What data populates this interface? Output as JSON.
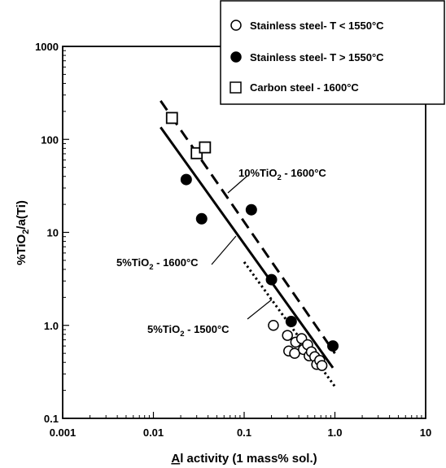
{
  "chart_data": {
    "type": "scatter",
    "xscale": "log",
    "yscale": "log",
    "xlim": [
      0.001,
      10
    ],
    "ylim": [
      0.1,
      1000
    ],
    "xticks": [
      "0.001",
      "0.01",
      "0.1",
      "1.0",
      "10"
    ],
    "yticks": [
      "0.1",
      "1.0",
      "10",
      "100",
      "1000"
    ],
    "xlabel": "Al activity (1 mass% sol.)",
    "xlabel_underlined": "A",
    "xlabel_rest": "l activity (1 mass% sol.)",
    "ylabel": "%TiO2/a(Ti)",
    "ylabel_parts": {
      "a": "%TiO",
      "sub": "2",
      "b": "/a(Ti)"
    },
    "grid": false,
    "legend": {
      "position": "top-right",
      "entries": [
        {
          "label": "Stainless steel- T < 1550°C",
          "marker": "open-circle"
        },
        {
          "label": "Stainless steel- T > 1550°C",
          "marker": "filled-circle"
        },
        {
          "label": "Carbon steel - 1600°C",
          "marker": "open-square"
        }
      ]
    },
    "series": [
      {
        "name": "Stainless steel- T < 1550°C",
        "marker": "open-circle",
        "points": [
          {
            "x": 0.21,
            "y": 1.0
          },
          {
            "x": 0.3,
            "y": 0.78
          },
          {
            "x": 0.31,
            "y": 0.53
          },
          {
            "x": 0.36,
            "y": 0.5
          },
          {
            "x": 0.37,
            "y": 0.66
          },
          {
            "x": 0.43,
            "y": 0.72
          },
          {
            "x": 0.45,
            "y": 0.55
          },
          {
            "x": 0.5,
            "y": 0.62
          },
          {
            "x": 0.52,
            "y": 0.47
          },
          {
            "x": 0.55,
            "y": 0.52
          },
          {
            "x": 0.6,
            "y": 0.46
          },
          {
            "x": 0.63,
            "y": 0.38
          },
          {
            "x": 0.68,
            "y": 0.42
          },
          {
            "x": 0.72,
            "y": 0.37
          }
        ]
      },
      {
        "name": "Stainless steel- T > 1550°C",
        "marker": "filled-circle",
        "points": [
          {
            "x": 0.023,
            "y": 37
          },
          {
            "x": 0.034,
            "y": 14
          },
          {
            "x": 0.12,
            "y": 17.5
          },
          {
            "x": 0.2,
            "y": 3.1
          },
          {
            "x": 0.33,
            "y": 1.1
          },
          {
            "x": 0.95,
            "y": 0.6
          }
        ]
      },
      {
        "name": "Carbon steel - 1600°C",
        "marker": "open-square",
        "points": [
          {
            "x": 0.016,
            "y": 170
          },
          {
            "x": 0.03,
            "y": 71
          },
          {
            "x": 0.037,
            "y": 82
          }
        ]
      }
    ],
    "lines": [
      {
        "label": "10%TiO2 - 1600°C",
        "label_parts": {
          "a": "10%TiO",
          "sub": "2",
          "b": " - 1600°C"
        },
        "style": "dashed",
        "from": {
          "x": 0.012,
          "y": 260
        },
        "to": {
          "x": 1.0,
          "y": 0.5
        }
      },
      {
        "label": "5%TiO2 - 1600°C",
        "label_parts": {
          "a": "5%TiO",
          "sub": "2",
          "b": " - 1600°C"
        },
        "style": "solid",
        "from": {
          "x": 0.012,
          "y": 135
        },
        "to": {
          "x": 0.95,
          "y": 0.35
        }
      },
      {
        "label": "5%TiO2 - 1500°C",
        "label_parts": {
          "a": "5%TiO",
          "sub": "2",
          "b": " - 1500°C"
        },
        "style": "dotted",
        "from": {
          "x": 0.1,
          "y": 4.8
        },
        "to": {
          "x": 1.0,
          "y": 0.22
        }
      }
    ]
  }
}
